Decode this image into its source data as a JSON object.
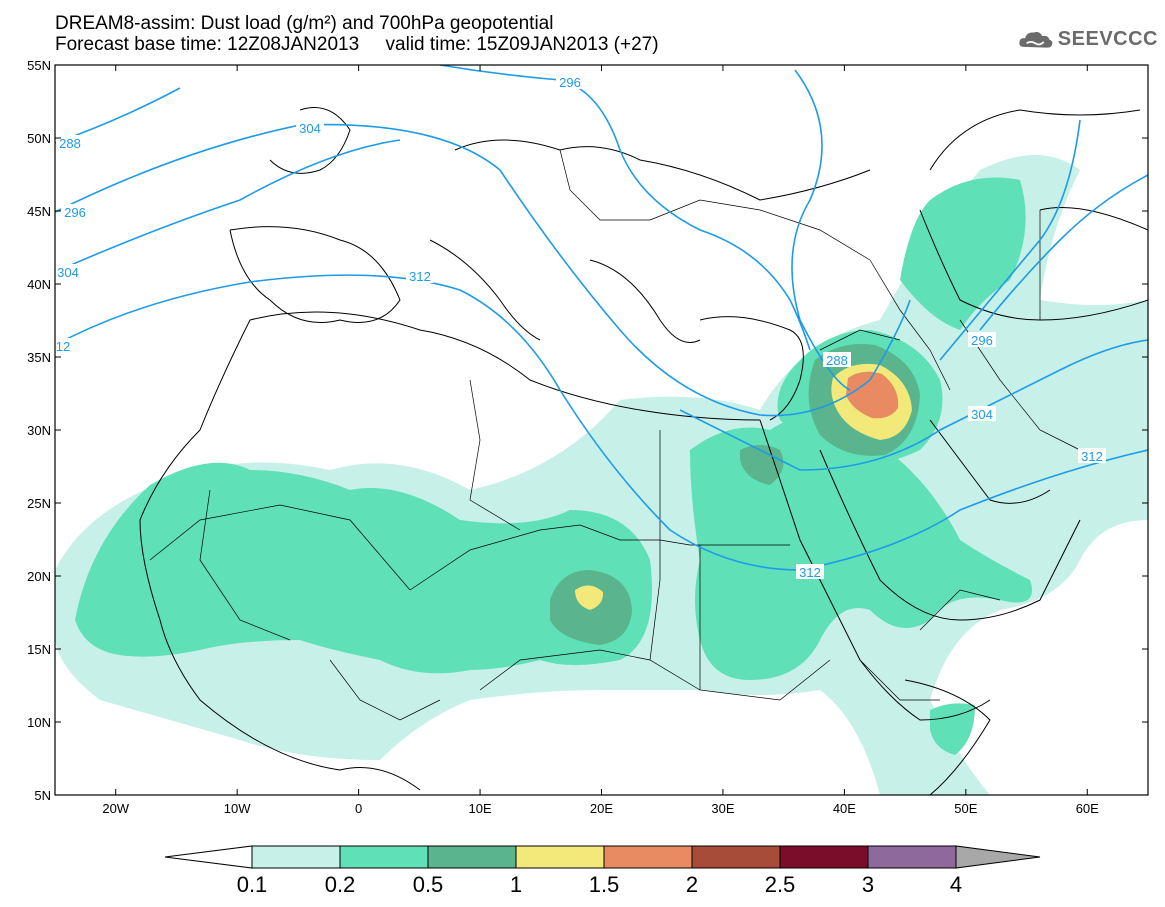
{
  "header": {
    "title_line1": "DREAM8-assim: Dust load (g/m²) and 700hPa geopotential",
    "title_line2": "Forecast base time: 12Z08JAN2013     valid time: 15Z09JAN2013 (+27)",
    "logo_text": "SEEVCCC",
    "logo_icon": "cloud-icon"
  },
  "map": {
    "lat_labels": [
      "55N",
      "50N",
      "45N",
      "40N",
      "35N",
      "30N",
      "25N",
      "20N",
      "15N",
      "10N",
      "5N"
    ],
    "lon_labels": [
      "20W",
      "10W",
      "0",
      "10E",
      "20E",
      "30E",
      "40E",
      "50E",
      "60E"
    ],
    "contour_labels": [
      "296",
      "288",
      "304",
      "296",
      "304",
      "312",
      "12",
      "288",
      "296",
      "304",
      "312",
      "312"
    ],
    "colors": {
      "contour": "#1e9be8",
      "coast": "#000000"
    }
  },
  "colorbar": {
    "tick_labels": [
      "0.1",
      "0.2",
      "0.5",
      "1",
      "1.5",
      "2",
      "2.5",
      "3",
      "4"
    ],
    "colors": [
      "#c6f0e8",
      "#5fe0b6",
      "#5ab48e",
      "#f2e97a",
      "#e98b62",
      "#a84c3a",
      "#7a0d2a",
      "#8e6a9c"
    ],
    "low_color": "#ffffff",
    "high_color": "#a8a8a8"
  }
}
